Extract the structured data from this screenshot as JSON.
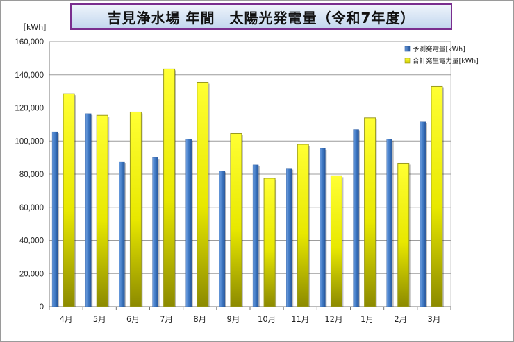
{
  "title": "吉見浄水場 年間　太陽光発電量（令和7年度）",
  "chart_data": {
    "type": "bar",
    "title": "吉見浄水場 年間　太陽光発電量（令和7年度）",
    "unit_label": "［kWh］",
    "categories": [
      "4月",
      "5月",
      "6月",
      "7月",
      "8月",
      "9月",
      "10月",
      "11月",
      "12月",
      "1月",
      "2月",
      "3月"
    ],
    "series": [
      {
        "name": "予測発電量[kWh]",
        "color": "#3f79c4",
        "values": [
          105500,
          116500,
          87500,
          90000,
          101000,
          82000,
          85500,
          83500,
          95500,
          107000,
          101000,
          111500
        ]
      },
      {
        "name": "合計発生電力量[kWh]",
        "color": "#f2f200",
        "values": [
          128500,
          115500,
          117500,
          143500,
          135500,
          104500,
          77500,
          98000,
          79000,
          114000,
          86500,
          133000
        ]
      }
    ],
    "ylim": [
      0,
      160000
    ],
    "yticks": [
      0,
      20000,
      40000,
      60000,
      80000,
      100000,
      120000,
      140000,
      160000
    ],
    "ytick_labels": [
      "0",
      "20,000",
      "40,000",
      "60,000",
      "80,000",
      "100,000",
      "120,000",
      "140,000",
      "160,000"
    ],
    "grid": true,
    "legend_position": "top-right"
  }
}
